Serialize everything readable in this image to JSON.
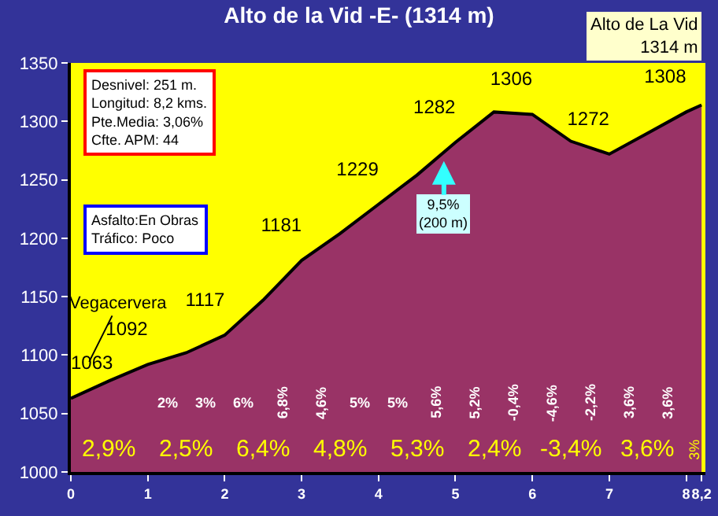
{
  "chart_data": {
    "type": "area",
    "title": "Alto de la Vid -E- (1314 m)",
    "x": [
      0,
      0.5,
      1,
      1.5,
      2,
      2.5,
      3,
      3.5,
      4,
      4.5,
      5,
      5.5,
      6,
      6.5,
      7,
      7.5,
      8,
      8.2
    ],
    "values": [
      1063,
      1078,
      1092,
      1102,
      1117,
      1147,
      1181,
      1204,
      1229,
      1254,
      1282,
      1308,
      1306,
      1283,
      1272,
      1290,
      1308,
      1314
    ],
    "value_labels": [
      "1063",
      null,
      "1092",
      null,
      "1117",
      null,
      "1181",
      null,
      "1229",
      null,
      "1282",
      null,
      "1306",
      null,
      "1272",
      null,
      "1308",
      null
    ],
    "color": "#993366",
    "xlim": [
      0,
      8.25
    ],
    "xticks": [
      0,
      1,
      2,
      3,
      4,
      5,
      6,
      7,
      8,
      {
        "value": 8.2,
        "label": "8,2"
      }
    ],
    "ylim": [
      1000,
      1350
    ],
    "yticks": [
      1000,
      1050,
      1100,
      1150,
      1200,
      1250,
      1300,
      1350
    ],
    "grid": false,
    "annotations": [
      "Desnivel: 251 m.\nLongitud: 8,2 kms.\nPte.Media: 3,06%\nCfte. APM: 44",
      "Asfalto:En Obras\nTráfico: Poco",
      {
        "text": "Alto de La Vid\n1314 m",
        "x": 8.2,
        "y": 1314
      },
      {
        "text": "Vegacervera",
        "x": 0,
        "y": 1063
      },
      {
        "text": "9,5%\n(200 m)",
        "x": 4.85,
        "y": 1266
      },
      "2%",
      "3%",
      "6%",
      "6,8%",
      "4,6%",
      "5%",
      "5%",
      "5,6%",
      "5,2%",
      "-0,4%",
      "-4,6%",
      "-2,2%",
      "3,6%",
      "3,6%",
      "2,9%",
      "2,5%",
      "6,4%",
      "4,8%",
      "5,3%",
      "2,4%",
      "-3,4%",
      "3,6%",
      "3%"
    ]
  }
}
